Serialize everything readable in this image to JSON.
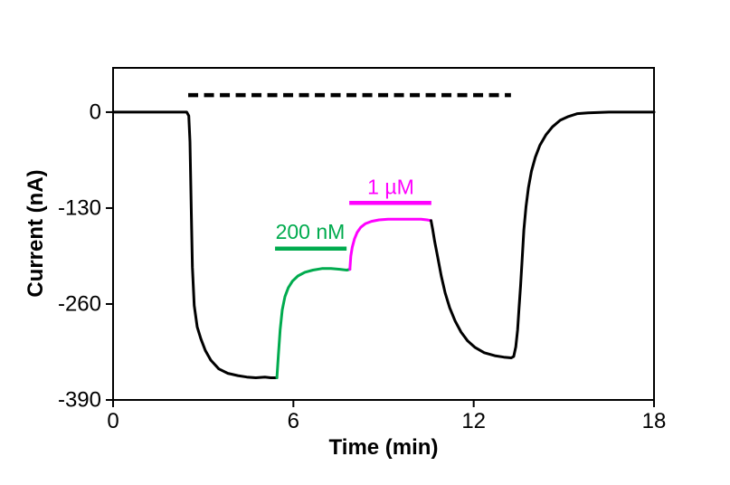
{
  "figure": {
    "background": "#ffffff"
  },
  "chart_data": {
    "type": "line",
    "title": "",
    "xlabel": "Time (min)",
    "ylabel": "Current (nA)",
    "xlim": [
      0,
      18
    ],
    "ylim": [
      -390,
      60
    ],
    "x_ticks": [
      0,
      6,
      12,
      18
    ],
    "y_ticks": [
      0,
      -130,
      -260,
      -390
    ],
    "grid": false,
    "legend": false,
    "axis_color": "#000000",
    "series": [
      {
        "name": "baseline-and-agonist-response",
        "color": "#000000",
        "points": [
          [
            0,
            0
          ],
          [
            1.0,
            0
          ],
          [
            2.0,
            0
          ],
          [
            2.45,
            0
          ],
          [
            2.52,
            -5
          ],
          [
            2.56,
            -40
          ],
          [
            2.6,
            -130
          ],
          [
            2.64,
            -210
          ],
          [
            2.7,
            -262
          ],
          [
            2.8,
            -291
          ],
          [
            2.92,
            -307
          ],
          [
            3.07,
            -323
          ],
          [
            3.25,
            -336
          ],
          [
            3.52,
            -348
          ],
          [
            3.82,
            -354
          ],
          [
            4.15,
            -357
          ],
          [
            4.45,
            -359
          ],
          [
            4.75,
            -360
          ],
          [
            5.05,
            -359
          ],
          [
            5.25,
            -360
          ],
          [
            5.45,
            -360
          ]
        ]
      },
      {
        "name": "response-200nM",
        "color": "#00ab4e",
        "points": [
          [
            5.45,
            -360
          ],
          [
            5.5,
            -330
          ],
          [
            5.56,
            -295
          ],
          [
            5.63,
            -268
          ],
          [
            5.72,
            -250
          ],
          [
            5.83,
            -238
          ],
          [
            5.97,
            -229
          ],
          [
            6.15,
            -222
          ],
          [
            6.38,
            -217
          ],
          [
            6.65,
            -214
          ],
          [
            6.95,
            -212
          ],
          [
            7.25,
            -212
          ],
          [
            7.55,
            -213
          ],
          [
            7.78,
            -214
          ],
          [
            7.88,
            -213
          ]
        ]
      },
      {
        "name": "response-1uM",
        "color": "#ff00ff",
        "points": [
          [
            7.88,
            -213
          ],
          [
            7.91,
            -195
          ],
          [
            7.96,
            -183
          ],
          [
            8.03,
            -172
          ],
          [
            8.12,
            -163
          ],
          [
            8.24,
            -156
          ],
          [
            8.4,
            -151
          ],
          [
            8.6,
            -148
          ],
          [
            8.85,
            -146
          ],
          [
            9.15,
            -145
          ],
          [
            9.5,
            -145
          ],
          [
            9.9,
            -145
          ],
          [
            10.25,
            -145
          ],
          [
            10.45,
            -146
          ],
          [
            10.58,
            -147
          ]
        ]
      },
      {
        "name": "washout-recovery",
        "color": "#000000",
        "points": [
          [
            10.58,
            -147
          ],
          [
            10.63,
            -158
          ],
          [
            10.7,
            -175
          ],
          [
            10.8,
            -196
          ],
          [
            10.92,
            -222
          ],
          [
            11.05,
            -245
          ],
          [
            11.2,
            -265
          ],
          [
            11.38,
            -283
          ],
          [
            11.58,
            -298
          ],
          [
            11.8,
            -310
          ],
          [
            12.05,
            -319
          ],
          [
            12.35,
            -326
          ],
          [
            12.7,
            -330
          ],
          [
            13.0,
            -332
          ],
          [
            13.25,
            -333
          ],
          [
            13.33,
            -331
          ],
          [
            13.4,
            -318
          ],
          [
            13.46,
            -295
          ],
          [
            13.51,
            -265
          ],
          [
            13.56,
            -235
          ],
          [
            13.61,
            -200
          ],
          [
            13.67,
            -160
          ],
          [
            13.74,
            -128
          ],
          [
            13.82,
            -103
          ],
          [
            13.92,
            -80
          ],
          [
            14.05,
            -61
          ],
          [
            14.2,
            -45
          ],
          [
            14.4,
            -31
          ],
          [
            14.62,
            -20
          ],
          [
            14.88,
            -11
          ],
          [
            15.15,
            -6
          ],
          [
            15.45,
            -2
          ],
          [
            15.8,
            -1
          ],
          [
            16.5,
            0
          ],
          [
            17.2,
            0
          ],
          [
            18.0,
            0
          ]
        ]
      }
    ],
    "annotations": [
      {
        "id": "drug-application-dashed-line",
        "type": "dashed-line",
        "color": "#000000",
        "y": 23,
        "x1": 2.5,
        "x2": 13.24,
        "label": ""
      },
      {
        "id": "bar-200nM",
        "type": "solid-bar",
        "color": "#00ab4e",
        "y": -185,
        "x1": 5.39,
        "x2": 7.77,
        "label": "200 nM",
        "label_x": 6.56,
        "label_y": -162
      },
      {
        "id": "bar-1uM",
        "type": "solid-bar",
        "color": "#ff00ff",
        "y": -123,
        "x1": 7.86,
        "x2": 10.59,
        "label": "1 µM",
        "label_x": 9.24,
        "label_y": -101
      }
    ]
  }
}
